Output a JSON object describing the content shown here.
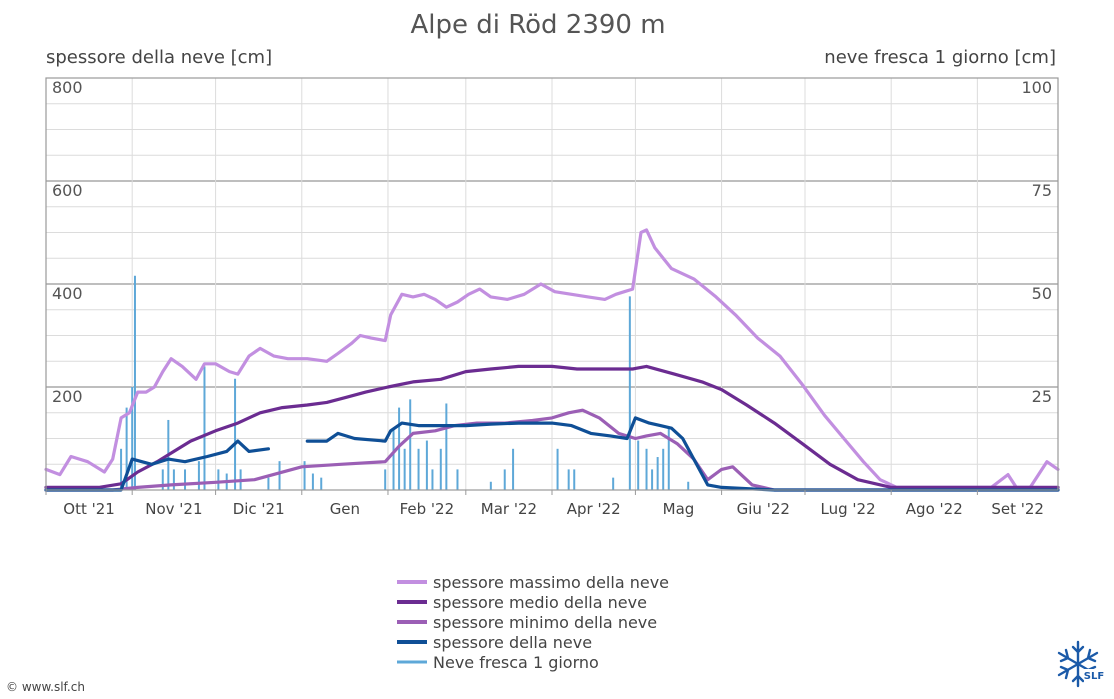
{
  "chart_data": {
    "type": "line",
    "title": "Alpe di Röd 2390 m",
    "y_left": {
      "label": "spessore della neve [cm]",
      "range": [
        0,
        800
      ],
      "ticks": [
        200,
        400,
        600,
        800
      ]
    },
    "y_right": {
      "label": "neve fresca 1 giorno [cm]",
      "range": [
        0,
        100
      ],
      "ticks": [
        25,
        50,
        75,
        100
      ]
    },
    "x_axis": {
      "type": "date",
      "range": [
        "2021-10-01",
        "2022-09-30"
      ],
      "ticks": [
        {
          "date": "2021-10-01",
          "label": "Ott '21"
        },
        {
          "date": "2021-11-01",
          "label": "Nov '21"
        },
        {
          "date": "2021-12-01",
          "label": "Dic '21"
        },
        {
          "date": "2022-01-01",
          "label": "Gen"
        },
        {
          "date": "2022-02-01",
          "label": "Feb '22"
        },
        {
          "date": "2022-03-01",
          "label": "Mar '22"
        },
        {
          "date": "2022-04-01",
          "label": "Apr '22"
        },
        {
          "date": "2022-05-01",
          "label": "Mag"
        },
        {
          "date": "2022-06-01",
          "label": "Giu '22"
        },
        {
          "date": "2022-07-01",
          "label": "Lug '22"
        },
        {
          "date": "2022-08-01",
          "label": "Ago '22"
        },
        {
          "date": "2022-09-01",
          "label": "Set '22"
        }
      ]
    },
    "grid": true,
    "legend_position": "bottom",
    "series": [
      {
        "name": "spessore massimo della neve",
        "type": "line",
        "axis": "left",
        "color": "#c28fe0",
        "points": [
          [
            "2021-10-01",
            40
          ],
          [
            "2021-10-06",
            30
          ],
          [
            "2021-10-10",
            65
          ],
          [
            "2021-10-16",
            55
          ],
          [
            "2021-10-22",
            35
          ],
          [
            "2021-10-25",
            60
          ],
          [
            "2021-10-28",
            140
          ],
          [
            "2021-10-31",
            150
          ],
          [
            "2021-11-03",
            190
          ],
          [
            "2021-11-06",
            190
          ],
          [
            "2021-11-09",
            200
          ],
          [
            "2021-11-12",
            230
          ],
          [
            "2021-11-15",
            255
          ],
          [
            "2021-11-19",
            240
          ],
          [
            "2021-11-24",
            215
          ],
          [
            "2021-11-27",
            245
          ],
          [
            "2021-12-01",
            245
          ],
          [
            "2021-12-06",
            230
          ],
          [
            "2021-12-09",
            225
          ],
          [
            "2021-12-13",
            260
          ],
          [
            "2021-12-17",
            275
          ],
          [
            "2021-12-22",
            260
          ],
          [
            "2021-12-27",
            255
          ],
          [
            "2022-01-03",
            255
          ],
          [
            "2022-01-10",
            250
          ],
          [
            "2022-01-14",
            265
          ],
          [
            "2022-01-19",
            285
          ],
          [
            "2022-01-22",
            300
          ],
          [
            "2022-01-26",
            295
          ],
          [
            "2022-01-31",
            290
          ],
          [
            "2022-02-02",
            340
          ],
          [
            "2022-02-06",
            380
          ],
          [
            "2022-02-10",
            375
          ],
          [
            "2022-02-14",
            380
          ],
          [
            "2022-02-18",
            370
          ],
          [
            "2022-02-22",
            355
          ],
          [
            "2022-02-26",
            365
          ],
          [
            "2022-03-02",
            380
          ],
          [
            "2022-03-06",
            390
          ],
          [
            "2022-03-10",
            375
          ],
          [
            "2022-03-16",
            370
          ],
          [
            "2022-03-22",
            380
          ],
          [
            "2022-03-28",
            400
          ],
          [
            "2022-04-02",
            385
          ],
          [
            "2022-04-08",
            380
          ],
          [
            "2022-04-14",
            375
          ],
          [
            "2022-04-20",
            370
          ],
          [
            "2022-04-24",
            380
          ],
          [
            "2022-04-27",
            385
          ],
          [
            "2022-04-30",
            390
          ],
          [
            "2022-05-03",
            500
          ],
          [
            "2022-05-05",
            505
          ],
          [
            "2022-05-08",
            470
          ],
          [
            "2022-05-14",
            430
          ],
          [
            "2022-05-22",
            410
          ],
          [
            "2022-05-30",
            375
          ],
          [
            "2022-06-06",
            340
          ],
          [
            "2022-06-14",
            295
          ],
          [
            "2022-06-22",
            260
          ],
          [
            "2022-06-30",
            205
          ],
          [
            "2022-07-08",
            145
          ],
          [
            "2022-07-15",
            100
          ],
          [
            "2022-07-22",
            55
          ],
          [
            "2022-07-28",
            20
          ],
          [
            "2022-08-03",
            5
          ],
          [
            "2022-08-10",
            5
          ],
          [
            "2022-08-20",
            5
          ],
          [
            "2022-08-30",
            5
          ],
          [
            "2022-09-06",
            5
          ],
          [
            "2022-09-12",
            30
          ],
          [
            "2022-09-15",
            5
          ],
          [
            "2022-09-20",
            5
          ],
          [
            "2022-09-26",
            55
          ],
          [
            "2022-09-30",
            40
          ]
        ]
      },
      {
        "name": "spessore medio della neve",
        "type": "line",
        "axis": "left",
        "color": "#6b2c91",
        "points": [
          [
            "2021-10-01",
            5
          ],
          [
            "2021-10-20",
            5
          ],
          [
            "2021-10-28",
            12
          ],
          [
            "2021-11-03",
            35
          ],
          [
            "2021-11-10",
            55
          ],
          [
            "2021-11-16",
            75
          ],
          [
            "2021-11-22",
            95
          ],
          [
            "2021-12-01",
            115
          ],
          [
            "2021-12-09",
            130
          ],
          [
            "2021-12-17",
            150
          ],
          [
            "2021-12-25",
            160
          ],
          [
            "2022-01-03",
            165
          ],
          [
            "2022-01-10",
            170
          ],
          [
            "2022-01-17",
            180
          ],
          [
            "2022-01-24",
            190
          ],
          [
            "2022-02-01",
            200
          ],
          [
            "2022-02-10",
            210
          ],
          [
            "2022-02-20",
            215
          ],
          [
            "2022-03-01",
            230
          ],
          [
            "2022-03-10",
            235
          ],
          [
            "2022-03-20",
            240
          ],
          [
            "2022-04-01",
            240
          ],
          [
            "2022-04-10",
            235
          ],
          [
            "2022-04-20",
            235
          ],
          [
            "2022-04-30",
            235
          ],
          [
            "2022-05-05",
            240
          ],
          [
            "2022-05-15",
            225
          ],
          [
            "2022-05-25",
            210
          ],
          [
            "2022-06-01",
            195
          ],
          [
            "2022-06-10",
            165
          ],
          [
            "2022-06-20",
            130
          ],
          [
            "2022-06-30",
            90
          ],
          [
            "2022-07-10",
            50
          ],
          [
            "2022-07-20",
            20
          ],
          [
            "2022-08-01",
            5
          ],
          [
            "2022-09-30",
            5
          ]
        ]
      },
      {
        "name": "spessore minimo della neve",
        "type": "line",
        "axis": "left",
        "color": "#9b5fb5",
        "points": [
          [
            "2021-10-01",
            0
          ],
          [
            "2021-10-25",
            0
          ],
          [
            "2021-11-03",
            5
          ],
          [
            "2021-11-15",
            10
          ],
          [
            "2021-12-01",
            15
          ],
          [
            "2021-12-15",
            20
          ],
          [
            "2022-01-01",
            45
          ],
          [
            "2022-01-15",
            50
          ],
          [
            "2022-01-31",
            55
          ],
          [
            "2022-02-05",
            85
          ],
          [
            "2022-02-10",
            110
          ],
          [
            "2022-02-18",
            115
          ],
          [
            "2022-02-25",
            125
          ],
          [
            "2022-03-05",
            130
          ],
          [
            "2022-03-15",
            130
          ],
          [
            "2022-03-25",
            135
          ],
          [
            "2022-04-01",
            140
          ],
          [
            "2022-04-07",
            150
          ],
          [
            "2022-04-12",
            155
          ],
          [
            "2022-04-18",
            140
          ],
          [
            "2022-04-25",
            110
          ],
          [
            "2022-05-01",
            100
          ],
          [
            "2022-05-05",
            105
          ],
          [
            "2022-05-10",
            110
          ],
          [
            "2022-05-16",
            90
          ],
          [
            "2022-05-22",
            60
          ],
          [
            "2022-05-27",
            20
          ],
          [
            "2022-06-01",
            40
          ],
          [
            "2022-06-05",
            45
          ],
          [
            "2022-06-12",
            10
          ],
          [
            "2022-06-20",
            0
          ],
          [
            "2022-09-30",
            0
          ]
        ]
      },
      {
        "name": "spessore della neve",
        "type": "line",
        "axis": "left",
        "color": "#0f4f96",
        "points": [
          [
            "2021-10-01",
            0
          ],
          [
            "2021-10-28",
            0
          ],
          [
            "2021-11-01",
            60
          ],
          [
            "2021-11-08",
            50
          ],
          [
            "2021-11-14",
            60
          ],
          [
            "2021-11-20",
            55
          ],
          [
            "2021-11-28",
            65
          ],
          [
            "2021-12-05",
            75
          ],
          [
            "2021-12-09",
            95
          ],
          [
            "2021-12-13",
            75
          ],
          [
            "2021-12-20",
            80
          ],
          null,
          [
            "2021-12-27",
            90
          ],
          null,
          [
            "2022-01-03",
            95
          ],
          [
            "2022-01-10",
            95
          ],
          [
            "2022-01-14",
            110
          ],
          [
            "2022-01-20",
            100
          ],
          [
            "2022-01-31",
            95
          ],
          [
            "2022-02-02",
            115
          ],
          [
            "2022-02-06",
            130
          ],
          [
            "2022-02-12",
            125
          ],
          [
            "2022-02-20",
            125
          ],
          [
            "2022-03-01",
            125
          ],
          [
            "2022-03-10",
            128
          ],
          [
            "2022-03-20",
            130
          ],
          [
            "2022-04-01",
            130
          ],
          [
            "2022-04-08",
            125
          ],
          [
            "2022-04-15",
            110
          ],
          [
            "2022-04-22",
            105
          ],
          [
            "2022-04-28",
            100
          ],
          [
            "2022-05-01",
            140
          ],
          [
            "2022-05-06",
            130
          ],
          [
            "2022-05-10",
            125
          ],
          [
            "2022-05-14",
            120
          ],
          [
            "2022-05-18",
            100
          ],
          [
            "2022-05-22",
            60
          ],
          [
            "2022-05-27",
            10
          ],
          [
            "2022-06-01",
            5
          ],
          [
            "2022-06-20",
            0
          ],
          [
            "2022-09-30",
            0
          ]
        ]
      },
      {
        "name": "Neve fresca 1 giorno",
        "type": "bar",
        "axis": "right",
        "color": "#5ea8d8",
        "points": [
          [
            "2021-10-28",
            10
          ],
          [
            "2021-10-30",
            20
          ],
          [
            "2021-11-01",
            25
          ],
          [
            "2021-11-02",
            52
          ],
          [
            "2021-11-12",
            5
          ],
          [
            "2021-11-14",
            17
          ],
          [
            "2021-11-16",
            5
          ],
          [
            "2021-11-20",
            5
          ],
          [
            "2021-11-25",
            7
          ],
          [
            "2021-11-27",
            30
          ],
          [
            "2021-12-02",
            5
          ],
          [
            "2021-12-05",
            4
          ],
          [
            "2021-12-08",
            27
          ],
          [
            "2021-12-10",
            5
          ],
          [
            "2021-12-20",
            3
          ],
          [
            "2021-12-24",
            7
          ],
          [
            "2022-01-02",
            7
          ],
          [
            "2022-01-05",
            4
          ],
          [
            "2022-01-08",
            3
          ],
          [
            "2022-01-31",
            5
          ],
          [
            "2022-02-03",
            15
          ],
          [
            "2022-02-05",
            20
          ],
          [
            "2022-02-07",
            10
          ],
          [
            "2022-02-09",
            22
          ],
          [
            "2022-02-12",
            10
          ],
          [
            "2022-02-15",
            12
          ],
          [
            "2022-02-17",
            5
          ],
          [
            "2022-02-20",
            10
          ],
          [
            "2022-02-22",
            21
          ],
          [
            "2022-02-26",
            5
          ],
          [
            "2022-03-10",
            2
          ],
          [
            "2022-03-15",
            5
          ],
          [
            "2022-03-18",
            10
          ],
          [
            "2022-04-03",
            10
          ],
          [
            "2022-04-07",
            5
          ],
          [
            "2022-04-09",
            5
          ],
          [
            "2022-04-23",
            3
          ],
          [
            "2022-04-29",
            47
          ],
          [
            "2022-05-02",
            12
          ],
          [
            "2022-05-05",
            10
          ],
          [
            "2022-05-07",
            5
          ],
          [
            "2022-05-09",
            8
          ],
          [
            "2022-05-11",
            10
          ],
          [
            "2022-05-13",
            15
          ],
          [
            "2022-05-20",
            2
          ]
        ]
      }
    ]
  },
  "footer": {
    "copyright": "© www.slf.ch",
    "logo_text": "SLF",
    "logo_icon": "snowflake-icon"
  }
}
